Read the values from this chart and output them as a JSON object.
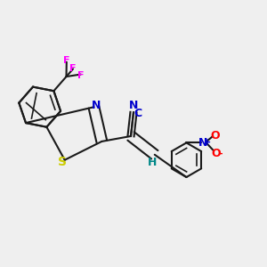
{
  "background_color": "#efefef",
  "bond_color": "#1a1a1a",
  "colors": {
    "N": "#0000cc",
    "S": "#cccc00",
    "F": "#ff00ff",
    "O": "#ff0000",
    "N_plus": "#0000cc",
    "C_label": "#0000cc",
    "H_label": "#008888"
  },
  "line_width": 1.5,
  "font_size": 9
}
